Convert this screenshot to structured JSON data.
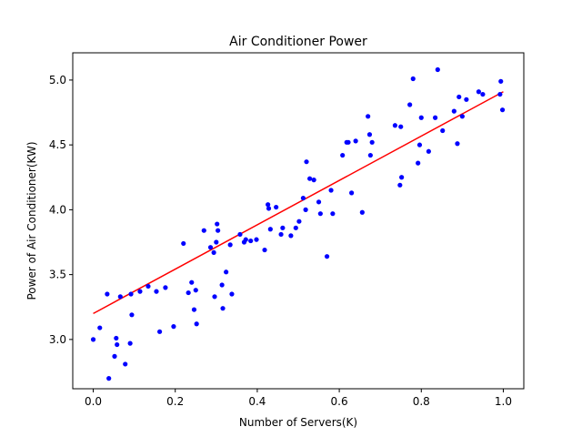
{
  "chart_data": {
    "type": "scatter",
    "title": "Air Conditioner Power",
    "xlabel": "Number of Servers(K)",
    "ylabel": "Power of Air Conditioner(KW)",
    "xlim": [
      -0.05,
      1.05
    ],
    "ylim": [
      2.62,
      5.21
    ],
    "xticks": [
      0.0,
      0.2,
      0.4,
      0.6,
      0.8,
      1.0
    ],
    "xtick_labels": [
      "0.0",
      "0.2",
      "0.4",
      "0.6",
      "0.8",
      "1.0"
    ],
    "yticks": [
      3.0,
      3.5,
      4.0,
      4.5,
      5.0
    ],
    "ytick_labels": [
      "3.0",
      "3.5",
      "4.0",
      "4.5",
      "5.0"
    ],
    "grid": false,
    "colors": {
      "points": "#0000ff",
      "fit_line": "#ff0000"
    },
    "series": [
      {
        "kind": "scatter",
        "x": [
          0.0,
          0.016,
          0.034,
          0.038,
          0.052,
          0.056,
          0.058,
          0.066,
          0.078,
          0.09,
          0.092,
          0.094,
          0.114,
          0.134,
          0.154,
          0.162,
          0.176,
          0.196,
          0.22,
          0.232,
          0.24,
          0.246,
          0.25,
          0.252,
          0.27,
          0.286,
          0.294,
          0.296,
          0.3,
          0.302,
          0.304,
          0.314,
          0.316,
          0.324,
          0.334,
          0.338,
          0.358,
          0.368,
          0.372,
          0.384,
          0.398,
          0.418,
          0.426,
          0.428,
          0.432,
          0.446,
          0.458,
          0.462,
          0.482,
          0.494,
          0.502,
          0.512,
          0.518,
          0.52,
          0.528,
          0.538,
          0.55,
          0.554,
          0.57,
          0.58,
          0.584,
          0.608,
          0.618,
          0.622,
          0.63,
          0.64,
          0.656,
          0.67,
          0.674,
          0.68,
          0.676,
          0.736,
          0.748,
          0.75,
          0.752,
          0.772,
          0.78,
          0.792,
          0.796,
          0.8,
          0.818,
          0.84,
          0.834,
          0.852,
          0.88,
          0.888,
          0.892,
          0.9,
          0.91,
          0.94,
          0.95,
          0.992,
          0.994,
          0.998
        ],
        "y": [
          3.0,
          3.09,
          3.35,
          2.7,
          2.87,
          3.01,
          2.96,
          3.33,
          2.81,
          2.97,
          3.35,
          3.19,
          3.37,
          3.41,
          3.37,
          3.06,
          3.4,
          3.1,
          3.74,
          3.36,
          3.44,
          3.23,
          3.38,
          3.12,
          3.84,
          3.71,
          3.67,
          3.33,
          3.75,
          3.89,
          3.84,
          3.42,
          3.24,
          3.52,
          3.73,
          3.35,
          3.81,
          3.75,
          3.77,
          3.76,
          3.77,
          3.69,
          4.04,
          4.01,
          3.85,
          4.02,
          3.81,
          3.86,
          3.8,
          3.86,
          3.91,
          4.09,
          4.0,
          4.37,
          4.24,
          4.23,
          4.06,
          3.97,
          3.64,
          4.15,
          3.97,
          4.42,
          4.52,
          4.52,
          4.13,
          4.53,
          3.98,
          4.72,
          4.58,
          4.52,
          4.42,
          4.65,
          4.19,
          4.64,
          4.25,
          4.81,
          5.01,
          4.36,
          4.5,
          4.71,
          4.45,
          5.08,
          4.71,
          4.61,
          4.76,
          4.51,
          4.87,
          4.72,
          4.85,
          4.91,
          4.89,
          4.89,
          4.99,
          4.77
        ]
      },
      {
        "kind": "line",
        "x": [
          0.0,
          1.0
        ],
        "y": [
          3.2,
          4.91
        ]
      }
    ]
  }
}
